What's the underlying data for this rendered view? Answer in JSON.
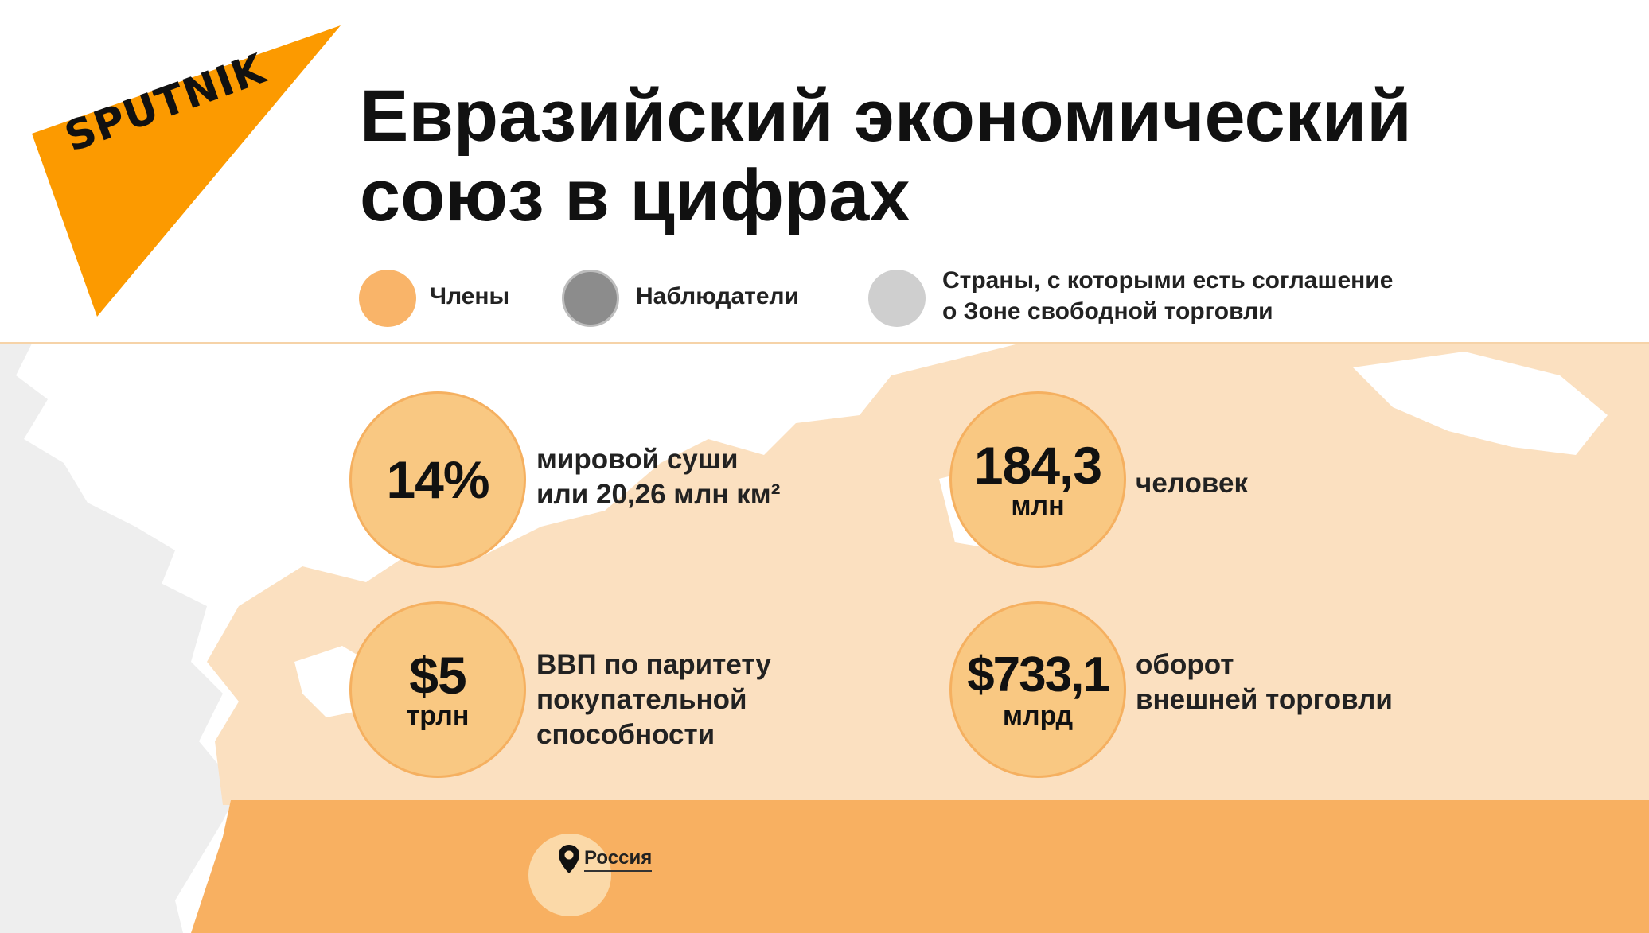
{
  "brand": {
    "logo_text": "SPUTNIK",
    "color": "#fc9a00"
  },
  "title": {
    "line1": "Евразийский экономический",
    "line2": "союз в цифрах"
  },
  "legend": [
    {
      "label": "Члены",
      "color": "#f9b469"
    },
    {
      "label": "Наблюдатели",
      "color": "#8c8c8c"
    },
    {
      "label_line1": "Страны, с которыми есть соглашение",
      "label_line2": "о Зоне свободной торговли",
      "color": "#cfcfcf"
    }
  ],
  "stats": [
    {
      "big": "14%",
      "desc_line1": "мировой суши",
      "desc_line2": "или 20,26 млн км²"
    },
    {
      "big": "184,3",
      "small": "млн",
      "desc_line1": "человек"
    },
    {
      "big": "$5",
      "small": "трлн",
      "desc_line1": "ВВП по паритету",
      "desc_line2": "покупательной",
      "desc_line3": "способности"
    },
    {
      "big": "$733,1",
      "small": "млрд",
      "desc_line1": "оборот",
      "desc_line2": "внешней торговли"
    }
  ],
  "location": {
    "label": "Россия",
    "icon": "map-pin-icon"
  },
  "colors": {
    "member_light": "#fbe0c0",
    "member_dark": "#f8b061",
    "land_other": "#eeeeee"
  }
}
